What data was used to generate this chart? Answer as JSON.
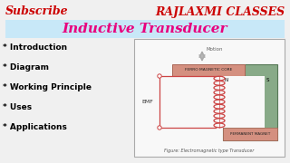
{
  "bg_color": "#f0f0f0",
  "subscribe_text": "Subscribe",
  "subscribe_color": "#cc0000",
  "brand_text": "RAJLAXMI CLASSES",
  "brand_color": "#cc0000",
  "title_text": "Inductive Transducer",
  "title_color": "#e8007d",
  "title_bg": "#c8e8f8",
  "bullet_items": [
    "* Introduction",
    "* Diagram",
    "* Working Principle",
    "* Uses",
    "* Applications"
  ],
  "bullet_color": "#000000",
  "figure_caption": "Figure: Electromagnetic type Transducer",
  "ferromagnetic_label": "FERRO MAGNETIC CORE",
  "permanent_magnet_label": "PERMANENT MAGNET",
  "emf_label": "EMF",
  "motion_label": "Motion",
  "n_label": "N",
  "s_label": "S",
  "coil_color": "#cc4444",
  "frame_color": "#88aa88",
  "frame_edge": "#557755",
  "fmc_color": "#d49080",
  "fmc_edge": "#aa6655",
  "diagram_bg": "#f8f8f8",
  "diagram_edge": "#aaaaaa",
  "arrow_color": "#aaaaaa"
}
